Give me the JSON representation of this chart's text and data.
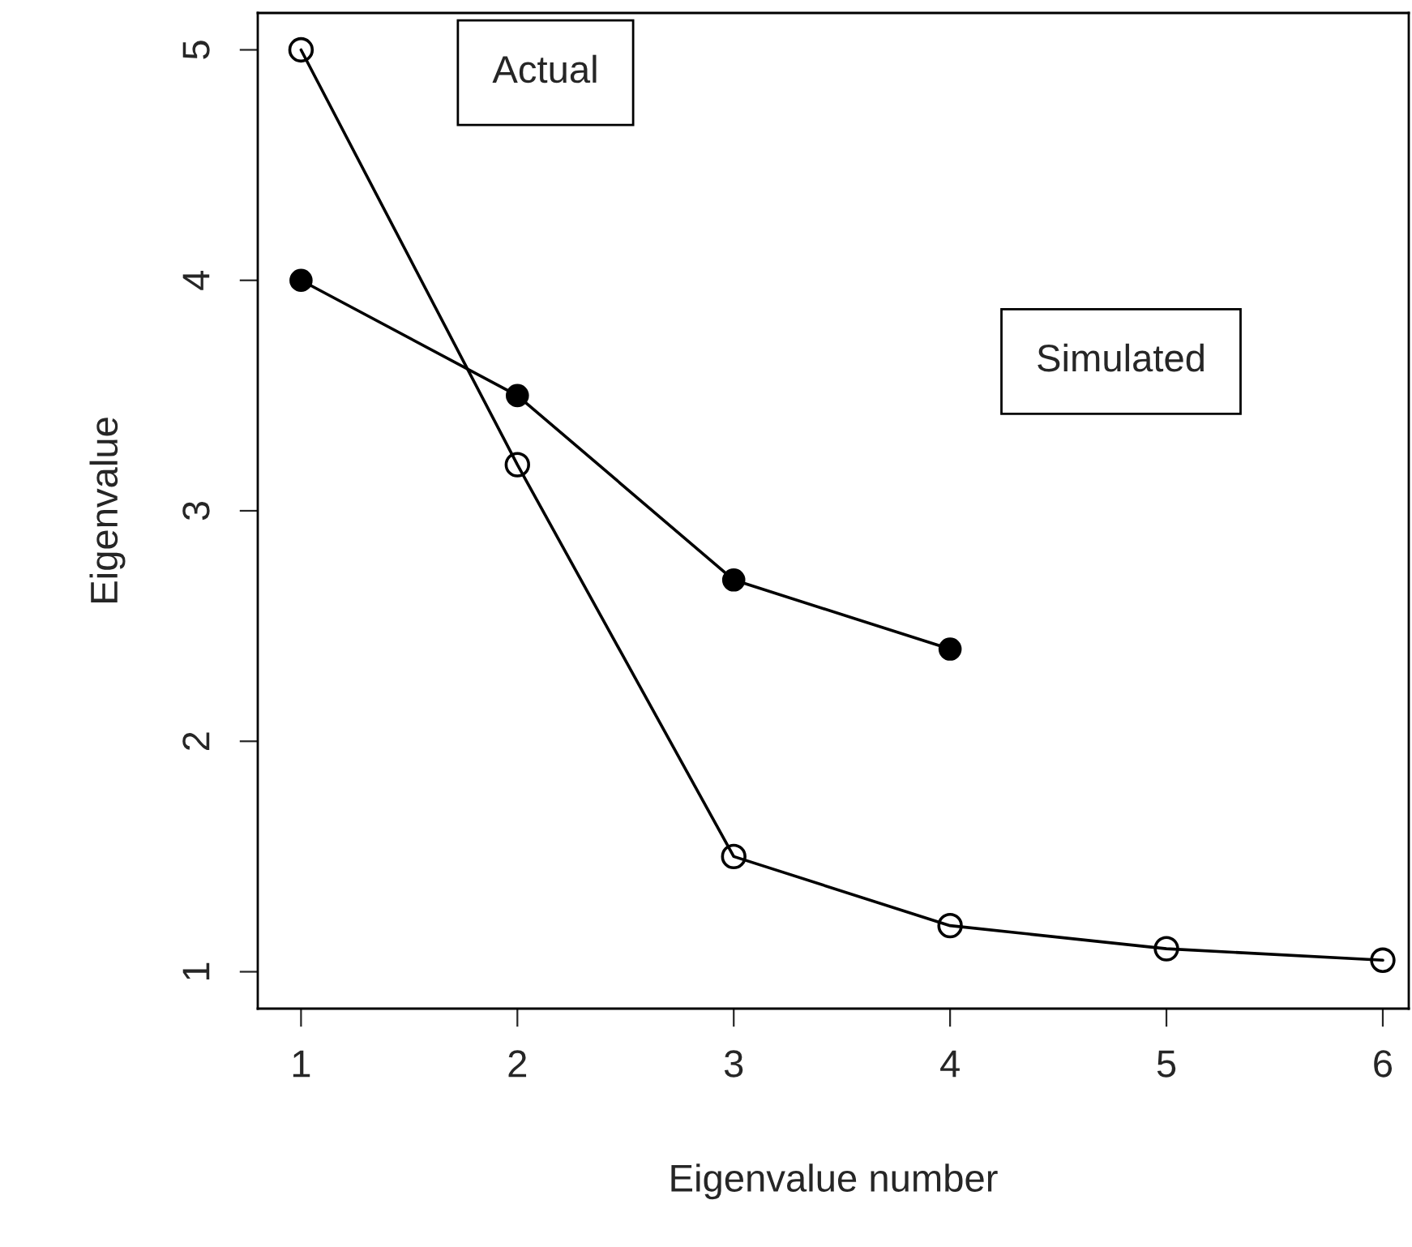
{
  "chart_data": {
    "type": "line",
    "xlabel": "Eigenvalue number",
    "ylabel": "Eigenvalue",
    "x": [
      1,
      2,
      3,
      4,
      5,
      6
    ],
    "series": [
      {
        "name": "Actual",
        "color": "#000000",
        "values": [
          5,
          3.2,
          1.5,
          1.2,
          1.1,
          1.05
        ]
      },
      {
        "name": "Simulated",
        "color": "#000000",
        "values": [
          4,
          3.5,
          2.7,
          2.4,
          null,
          null
        ]
      }
    ],
    "xlim": [
      0.8,
      6.12
    ],
    "ylim": [
      0.84,
      5.16
    ],
    "xticks": [
      1,
      2,
      3,
      4,
      5,
      6
    ],
    "yticks": [
      1,
      2,
      3,
      4,
      5
    ],
    "marker": "circle",
    "line_style": "solid",
    "grid": false,
    "legend": false
  }
}
